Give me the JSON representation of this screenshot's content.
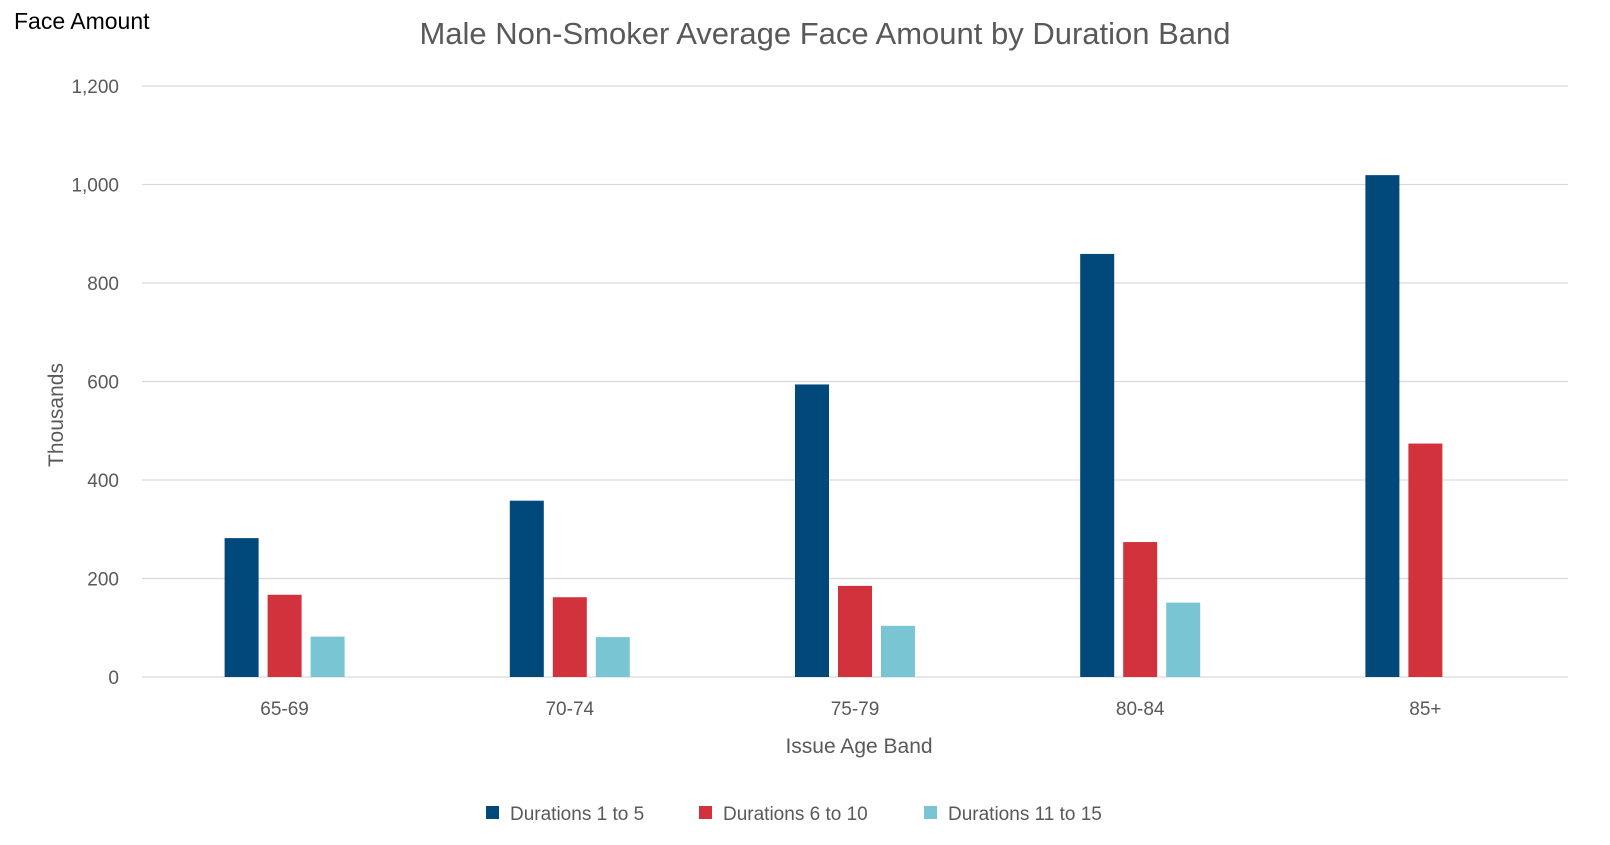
{
  "corner_label": "Face Amount",
  "chart_data": {
    "type": "bar",
    "title": "Male Non-Smoker Average Face Amount by Duration Band",
    "xlabel": "Issue Age Band",
    "ylabel": "Thousands",
    "categories": [
      "65-69",
      "70-74",
      "75-79",
      "80-84",
      "85+"
    ],
    "series": [
      {
        "name": "Durations 1 to 5",
        "color": "#00497a",
        "values": [
          282,
          358,
          594,
          859,
          1019
        ]
      },
      {
        "name": "Durations 6 to 10",
        "color": "#d2323c",
        "values": [
          167,
          162,
          185,
          274,
          474
        ]
      },
      {
        "name": "Durations 11 to 15",
        "color": "#7ac5d3",
        "values": [
          82,
          81,
          104,
          151,
          null
        ]
      }
    ],
    "ylim": [
      0,
      1200
    ],
    "yticks": [
      0,
      200,
      400,
      600,
      800,
      1000,
      1200
    ],
    "ytick_labels": [
      "0",
      "200",
      "400",
      "600",
      "800",
      "1,000",
      "1,200"
    ],
    "grid": true,
    "legend_position": "bottom"
  }
}
